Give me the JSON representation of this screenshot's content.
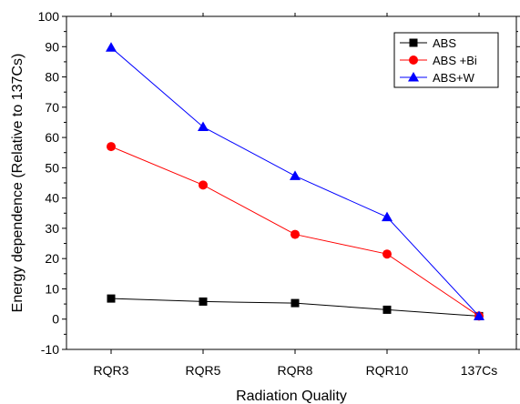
{
  "chart_data": {
    "type": "line",
    "xlabel": "Radiation Quality",
    "ylabel": "Energy dependence (Relative to 137Cs)",
    "categories": [
      "RQR3",
      "RQR5",
      "RQR8",
      "RQR10",
      "137Cs"
    ],
    "ylim": [
      -10,
      100
    ],
    "yticks": [
      -10,
      0,
      10,
      20,
      30,
      40,
      50,
      60,
      70,
      80,
      90,
      100
    ],
    "grid": false,
    "legend_position": "top-right",
    "series": [
      {
        "name": "ABS",
        "color": "#000000",
        "marker": "square",
        "values": [
          6.8,
          5.8,
          5.3,
          3.1,
          1.0
        ]
      },
      {
        "name": "ABS +Bi",
        "color": "#ff0000",
        "marker": "circle",
        "values": [
          57.0,
          44.3,
          28.0,
          21.5,
          1.0
        ]
      },
      {
        "name": "ABS+W",
        "color": "#0000ff",
        "marker": "triangle",
        "values": [
          89.7,
          63.5,
          47.3,
          33.7,
          1.0
        ]
      }
    ]
  }
}
